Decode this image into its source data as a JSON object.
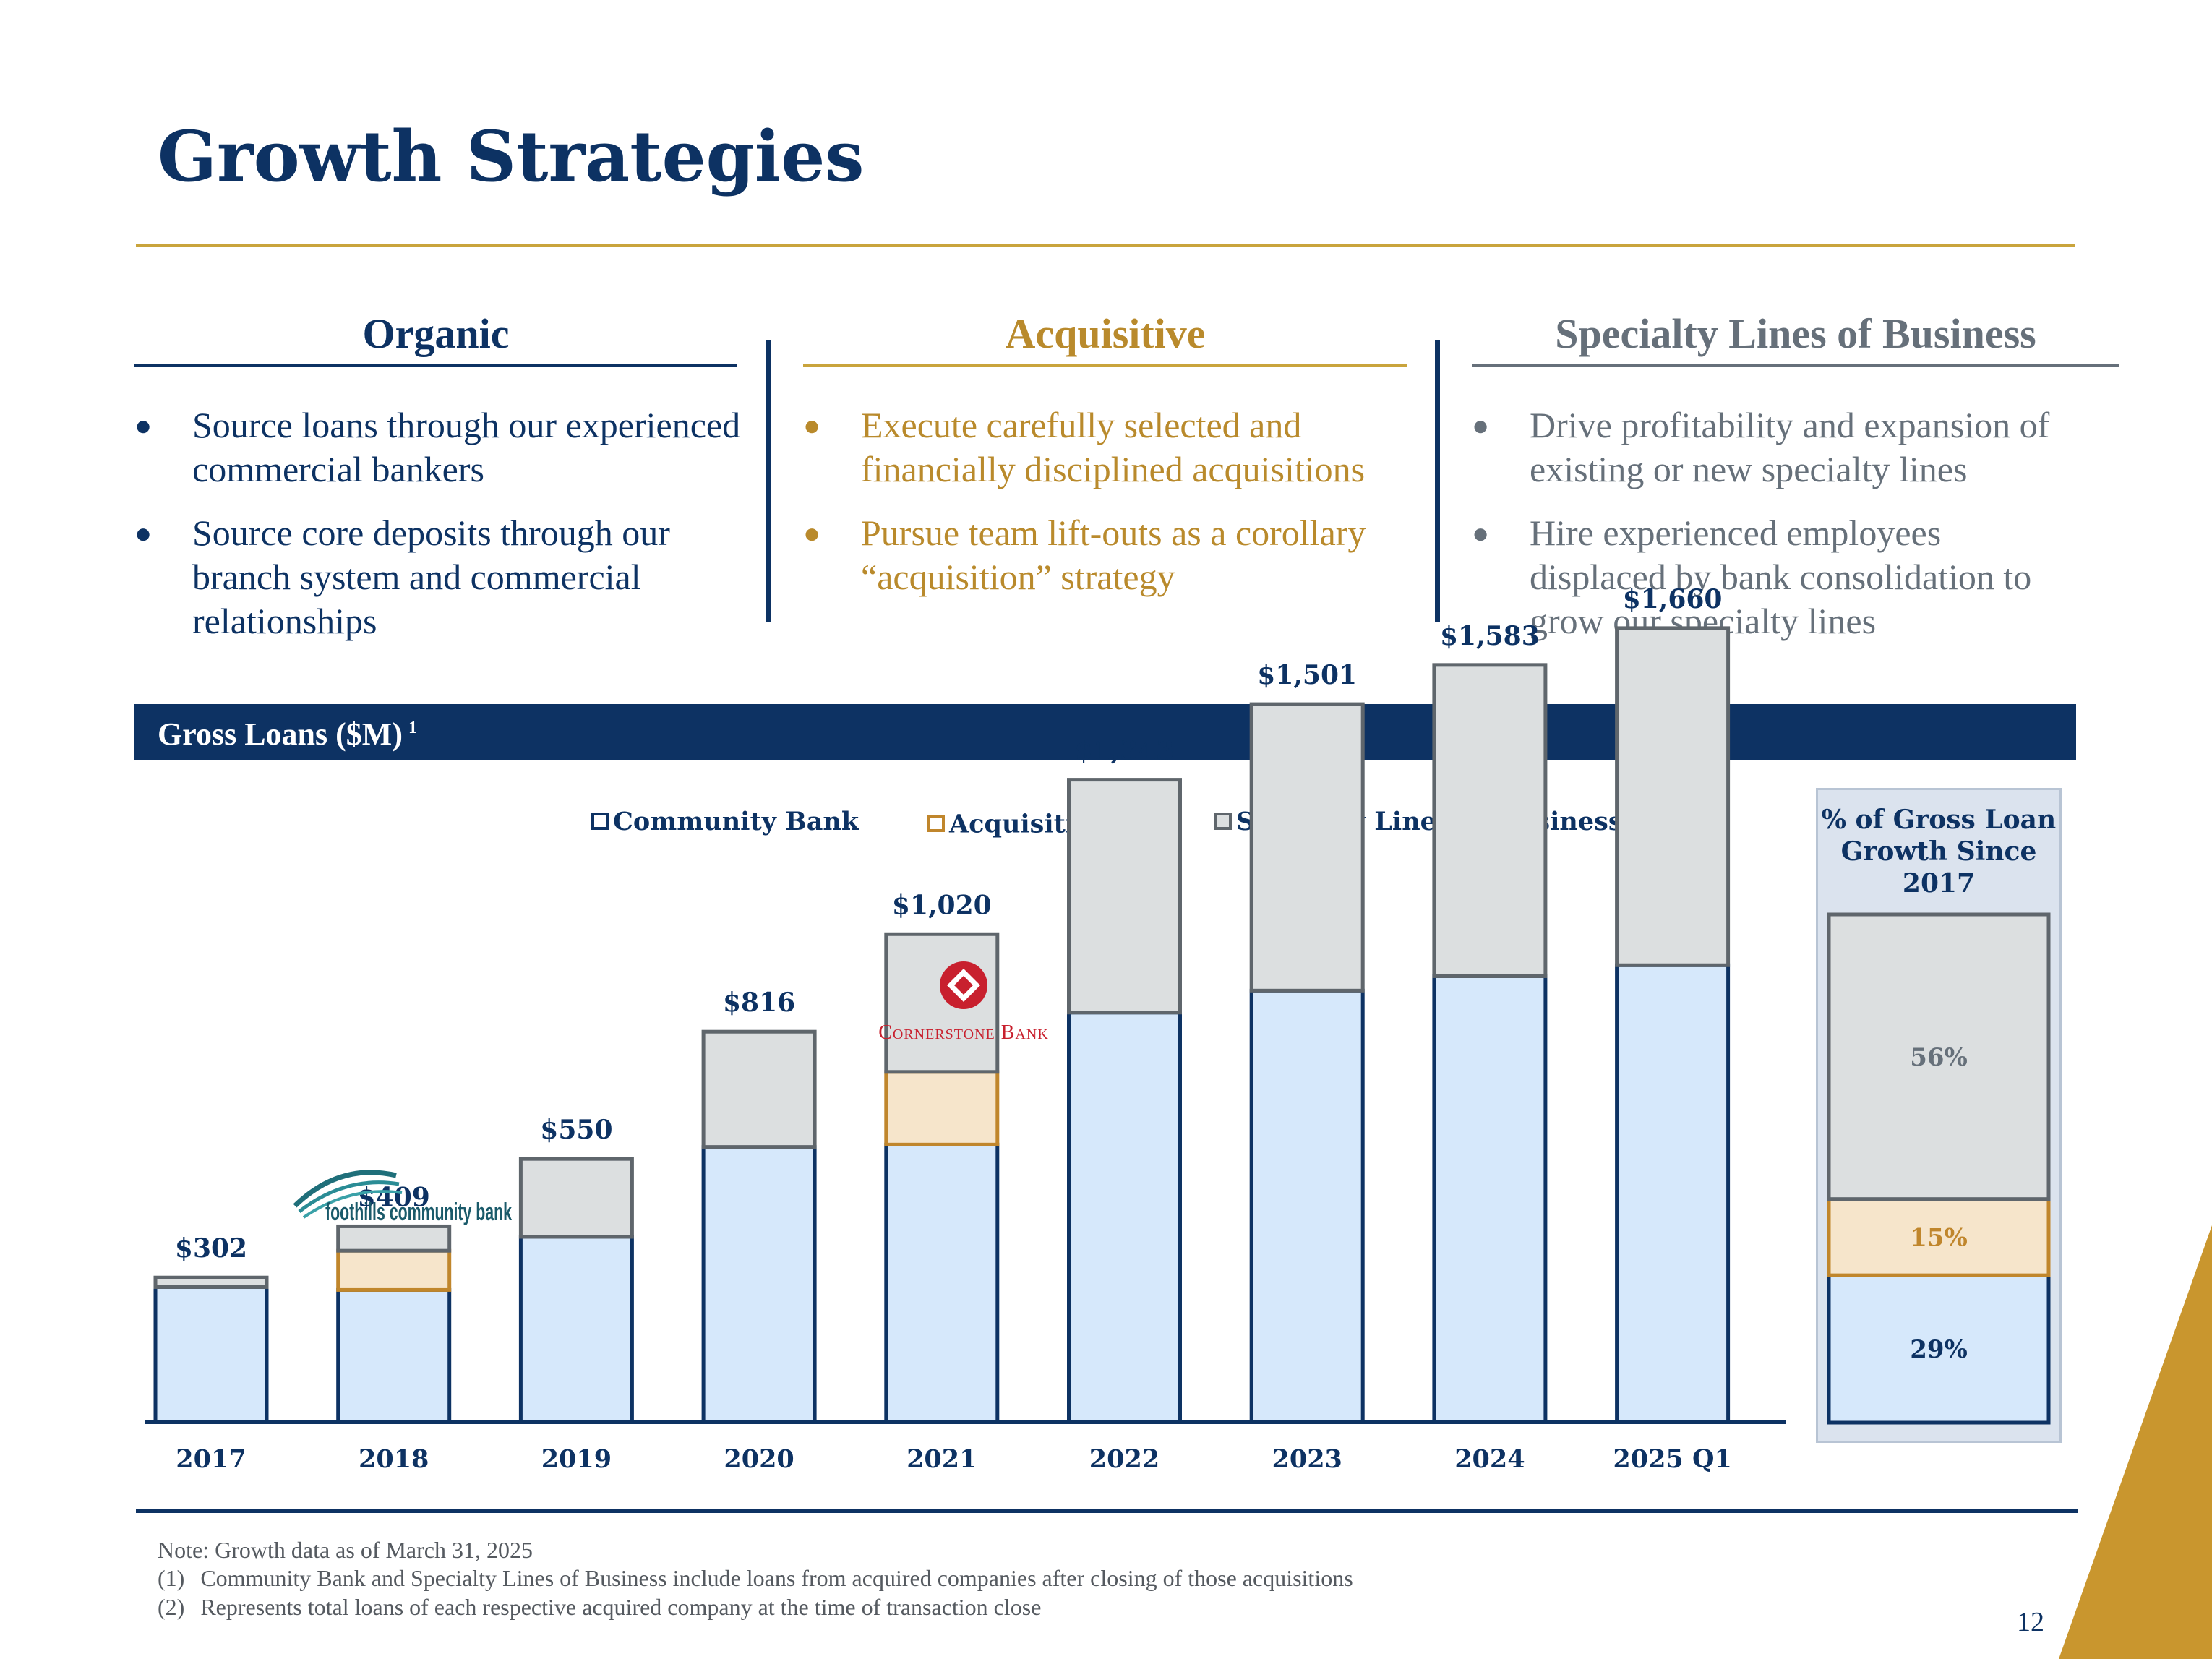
{
  "title": "Growth Strategies",
  "columns": [
    {
      "heading": "Organic",
      "bullets": [
        "Source loans through our experienced commercial bankers",
        "Source core deposits through our branch system and commercial relationships"
      ]
    },
    {
      "heading": "Acquisitive",
      "bullets": [
        "Execute carefully selected and financially disciplined acquisitions",
        "Pursue team lift-outs as a corollary “acquisition” strategy"
      ]
    },
    {
      "heading": "Specialty Lines of Business",
      "bullets": [
        "Drive profitability and expansion of existing or new specialty lines",
        "Hire experienced employees displaced by bank consolidation to grow our specialty lines"
      ]
    }
  ],
  "section": {
    "title": "Gross Loans ($M)",
    "footnote_marker": "1"
  },
  "colors": {
    "navy": "#0d3263",
    "gold": "#c9a43c",
    "gold_text": "#b98a2c",
    "grey_text": "#66707a",
    "community_fill": "#d6e8fb",
    "community_stroke": "#0d3263",
    "acq_fill": "#f6e5cb",
    "acq_stroke": "#c0862c",
    "specialty_fill": "#dcdfe0",
    "specialty_stroke": "#5f666c"
  },
  "logos": {
    "foothills": "foothills community bank",
    "cornerstone": "Cornerstone Bank"
  },
  "chart_data": [
    {
      "type": "bar",
      "stacked": true,
      "title": "Gross Loans ($M)",
      "categories": [
        "2017",
        "2018",
        "2019",
        "2020",
        "2021",
        "2022",
        "2023",
        "2024",
        "2025 Q1"
      ],
      "series": [
        {
          "name": "Community Bank",
          "values": [
            282,
            276,
            387,
            575,
            580,
            856,
            902,
            932,
            955
          ]
        },
        {
          "name": "Acquisitions",
          "legend_suffix": "2",
          "values": [
            0,
            82,
            0,
            0,
            152,
            0,
            0,
            0,
            0
          ]
        },
        {
          "name": "Specialty Lines of Business",
          "values": [
            20,
            51,
            163,
            241,
            288,
            487,
            599,
            651,
            705
          ]
        }
      ],
      "totals": [
        "$302",
        "$409",
        "$550",
        "$816",
        "$1,020",
        "$1,343",
        "$1,501",
        "$1,583",
        "$1,660"
      ],
      "ylim": [
        0,
        1750
      ],
      "legend_position": "top"
    },
    {
      "type": "bar",
      "stacked": true,
      "title": "% of Gross Loan Growth Since 2017",
      "series": [
        {
          "name": "Community Bank",
          "value": 29,
          "label": "29%"
        },
        {
          "name": "Acquisitions",
          "value": 15,
          "label": "15%"
        },
        {
          "name": "Specialty Lines of Business",
          "value": 56,
          "label": "56%"
        }
      ]
    }
  ],
  "notes": {
    "note": "Note:  Growth data as of March 31, 2025",
    "items": [
      {
        "marker": "(1)",
        "text": "Community Bank and Specialty Lines of Business include loans from acquired companies after closing of those acquisitions"
      },
      {
        "marker": "(2)",
        "text": "Represents total loans of each respective acquired company at the time of transaction close"
      }
    ]
  },
  "page_number": "12"
}
